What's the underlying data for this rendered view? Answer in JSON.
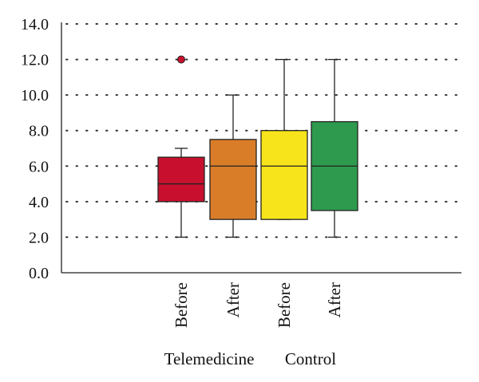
{
  "chart_data": {
    "type": "box",
    "title": "",
    "xlabel": "",
    "ylabel": "",
    "ylim": [
      0,
      14
    ],
    "yticks": [
      "0.0",
      "2.0",
      "4.0",
      "6.0",
      "8.0",
      "10.0",
      "12.0",
      "14.0"
    ],
    "grid": "dotted-horizontal",
    "groups": [
      {
        "label": "Telemedicine"
      },
      {
        "label": "Control"
      }
    ],
    "boxes": [
      {
        "label": "Before",
        "min": 2.0,
        "q1": 4.0,
        "median": 5.0,
        "q3": 6.5,
        "max": 7.0,
        "outliers": [
          12.0
        ],
        "color": "#c8102e"
      },
      {
        "label": "After",
        "min": 2.0,
        "q1": 3.0,
        "median": 6.0,
        "q3": 7.5,
        "max": 10.0,
        "outliers": [],
        "color": "#d97d29"
      },
      {
        "label": "Before",
        "min": 3.0,
        "q1": 3.0,
        "median": 6.0,
        "q3": 8.0,
        "max": 12.0,
        "outliers": [],
        "color": "#f7e41a"
      },
      {
        "label": "After",
        "min": 2.0,
        "q1": 3.5,
        "median": 6.0,
        "q3": 8.5,
        "max": 12.0,
        "outliers": [],
        "color": "#2e9a4e"
      }
    ]
  }
}
